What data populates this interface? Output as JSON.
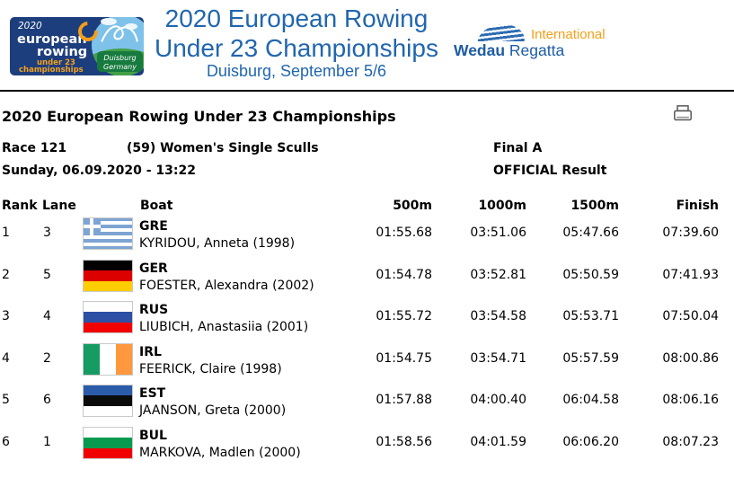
{
  "banner": {
    "logo": {
      "year": "2020",
      "word1": "european",
      "word2": "rowing",
      "sub1": "under 23",
      "sub2": "championships",
      "city": "Duisburg",
      "country": "Germany"
    },
    "title_line1": "2020 European Rowing",
    "title_line2": "Under 23 Championships",
    "title_line3": "Duisburg, September 5/6",
    "partner": {
      "international": "International",
      "wedau": "Wedau",
      "regatta": " Regatta"
    }
  },
  "section_title": "2020 European Rowing Under 23 Championships",
  "race": {
    "number": "Race 121",
    "event": "(59) Women's Single Sculls",
    "final": "Final A",
    "datetime": "Sunday, 06.09.2020 - 13:22",
    "status": "OFFICIAL Result"
  },
  "table": {
    "headers": {
      "rank": "Rank",
      "lane": "Lane",
      "boat": "Boat",
      "m500": "500m",
      "m1000": "1000m",
      "m1500": "1500m",
      "finish": "Finish"
    },
    "rows": [
      {
        "rank": "1",
        "lane": "3",
        "country": "GRE",
        "name": "KYRIDOU, Anneta (1998)",
        "t500": "01:55.68",
        "t1000": "03:51.06",
        "t1500": "05:47.66",
        "finish": "07:39.60",
        "flag": "GRE"
      },
      {
        "rank": "2",
        "lane": "5",
        "country": "GER",
        "name": "FOESTER, Alexandra (2002)",
        "t500": "01:54.78",
        "t1000": "03:52.81",
        "t1500": "05:50.59",
        "finish": "07:41.93",
        "flag": "GER"
      },
      {
        "rank": "3",
        "lane": "4",
        "country": "RUS",
        "name": "LIUBICH, Anastasiia (2001)",
        "t500": "01:55.72",
        "t1000": "03:54.58",
        "t1500": "05:53.71",
        "finish": "07:50.04",
        "flag": "RUS"
      },
      {
        "rank": "4",
        "lane": "2",
        "country": "IRL",
        "name": "FEERICK, Claire (1998)",
        "t500": "01:54.75",
        "t1000": "03:54.71",
        "t1500": "05:57.59",
        "finish": "08:00.86",
        "flag": "IRL"
      },
      {
        "rank": "5",
        "lane": "6",
        "country": "EST",
        "name": "JAANSON, Greta (2000)",
        "t500": "01:57.88",
        "t1000": "04:00.40",
        "t1500": "06:04.58",
        "finish": "08:06.16",
        "flag": "EST"
      },
      {
        "rank": "6",
        "lane": "1",
        "country": "BUL",
        "name": "MARKOVA, Madlen (2000)",
        "t500": "01:58.56",
        "t1000": "04:01.59",
        "t1500": "06:06.20",
        "finish": "08:07.23",
        "flag": "BUL"
      }
    ]
  },
  "flags": {
    "GRE": {
      "type": "gre",
      "blue": "#7da4d3",
      "white": "#ffffff"
    },
    "GER": {
      "type": "h",
      "stripes": [
        "#000000",
        "#dd0000",
        "#ffce00"
      ]
    },
    "RUS": {
      "type": "h",
      "stripes": [
        "#ffffff",
        "#2d50a5",
        "#f20000"
      ]
    },
    "IRL": {
      "type": "v",
      "stripes": [
        "#169c62",
        "#ffffff",
        "#ff983f"
      ]
    },
    "EST": {
      "type": "h",
      "stripes": [
        "#2b5caa",
        "#0b0b0b",
        "#ffffff"
      ]
    },
    "BUL": {
      "type": "h",
      "stripes": [
        "#ffffff",
        "#089b50",
        "#f00000"
      ]
    }
  },
  "colors": {
    "title_blue": "#2166ae",
    "orange": "#f59e19",
    "logo_navy": "#1d3e7d"
  }
}
